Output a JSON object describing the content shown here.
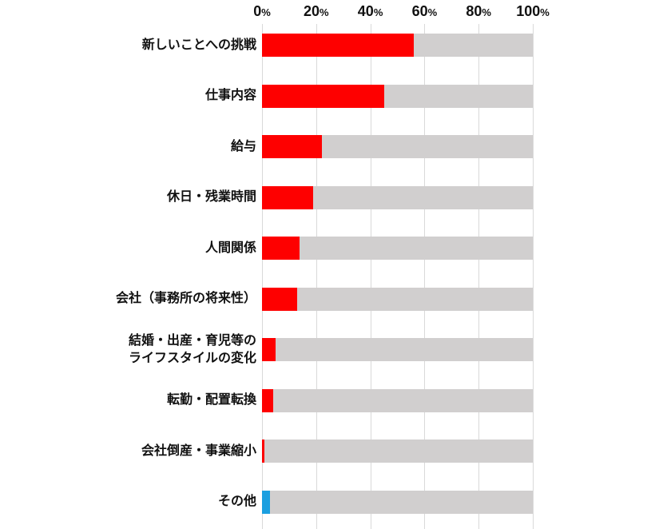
{
  "chart_data": {
    "type": "bar",
    "orientation": "horizontal",
    "title": "",
    "xlabel": "",
    "ylabel": "",
    "xlim": [
      0,
      100
    ],
    "grid": true,
    "axis_position": "top",
    "tick_labels": [
      "0%",
      "20%",
      "40%",
      "60%",
      "80%",
      "100%"
    ],
    "ticks": [
      0,
      20,
      40,
      60,
      80,
      100
    ],
    "percent_suffix": "%",
    "categories": [
      "新しいことへの挑戦",
      "仕事内容",
      "給与",
      "休日・残業時間",
      "人間関係",
      "会社（事務所の将来性）",
      "結婚・出産・育児等の\nライフスタイルの変化",
      "転勤・配置転換",
      "会社倒産・事業縮小",
      "その他"
    ],
    "values": [
      56,
      45,
      22,
      19,
      14,
      13,
      5,
      4,
      1,
      3
    ],
    "bar_colors": [
      "#fe0000",
      "#fe0000",
      "#fe0000",
      "#fe0000",
      "#fe0000",
      "#fe0000",
      "#fe0000",
      "#fe0000",
      "#fe0000",
      "#1b9fe0"
    ],
    "background_bars": true,
    "track_color": "#d1cfcf",
    "gridline_color": "#d9d9d9",
    "colors": {
      "primary_bar": "#fe0000",
      "other_bar": "#1b9fe0",
      "track": "#d1cfcf",
      "text": "#111111"
    },
    "legend": null
  }
}
